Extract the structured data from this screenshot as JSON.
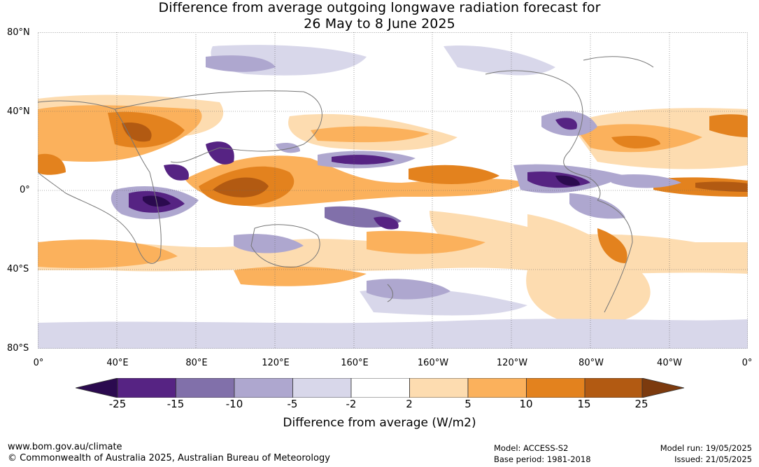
{
  "title": {
    "line1": "Difference from average outgoing longwave radiation forecast for",
    "line2": "26 May to 8 June 2025"
  },
  "map": {
    "lat_labels": [
      "80°N",
      "40°N",
      "0°",
      "40°S",
      "80°S"
    ],
    "lon_labels": [
      "0°",
      "40°E",
      "80°E",
      "120°E",
      "160°E",
      "160°W",
      "120°W",
      "80°W",
      "40°W",
      "0°"
    ]
  },
  "colorbar": {
    "labels": [
      "-25",
      "-15",
      "-10",
      "-5",
      "-2",
      "2",
      "5",
      "10",
      "15",
      "25"
    ],
    "colors": [
      "#2b0a4f",
      "#562383",
      "#8170aa",
      "#aea7cf",
      "#d8d7ea",
      "#ffffff",
      "#fddcb0",
      "#fbb15c",
      "#e3821e",
      "#b25a12",
      "#7c3a0e"
    ],
    "title": "Difference from average (W/m2)"
  },
  "footer": {
    "website": "www.bom.gov.au/climate",
    "copyright": "© Commonwealth of Australia 2025, Australian Bureau of Meteorology",
    "model": "Model: ACCESS-S2",
    "base_period": "Base period: 1981-2018",
    "model_run": "Model run: 19/05/2025",
    "issued": "Issued: 21/05/2025"
  }
}
